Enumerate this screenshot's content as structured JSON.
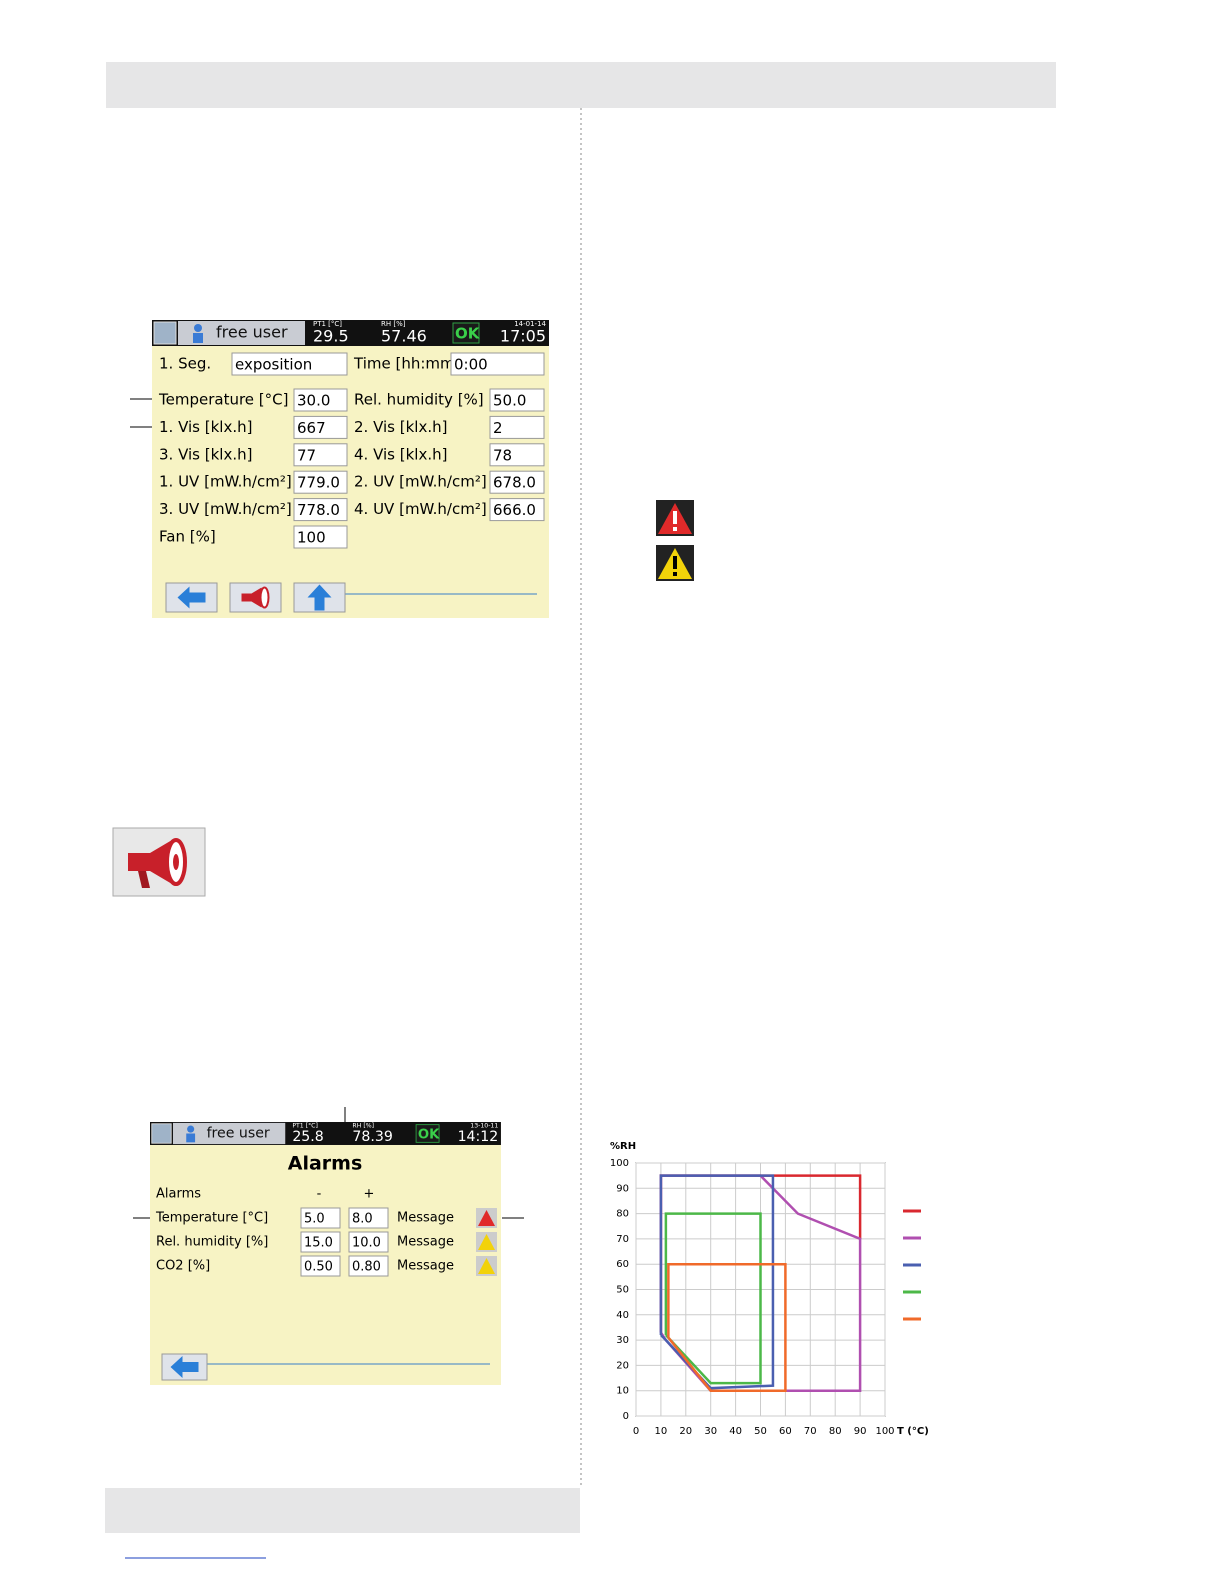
{
  "screen1": {
    "user": "free user",
    "status": [
      {
        "label": "PT1 [°C]",
        "value": "29.5"
      },
      {
        "label": "RH [%]",
        "value": "57.46"
      }
    ],
    "ok": "OK",
    "date": "14-01-14",
    "time": "17:05",
    "segment": {
      "label": "1. Seg.",
      "value": "exposition",
      "time_label": "Time [hh:mm]",
      "time_value": "0:00"
    },
    "rows": [
      [
        "Temperature [°C]",
        "30.0",
        "Rel. humidity [%]",
        "50.0"
      ],
      [
        "1. Vis [klx.h]",
        "667",
        "2. Vis [klx.h]",
        "2"
      ],
      [
        "3. Vis [klx.h]",
        "77",
        "4. Vis [klx.h]",
        "78"
      ],
      [
        "1. UV [mW.h/cm²]",
        "779.0",
        "2. UV [mW.h/cm²]",
        "678.0"
      ],
      [
        "3. UV [mW.h/cm²]",
        "778.0",
        "4. UV [mW.h/cm²]",
        "666.0"
      ],
      [
        "Fan [%]",
        "100"
      ]
    ]
  },
  "screen2": {
    "user": "free user",
    "status": [
      {
        "label": "PT1 [°C]",
        "value": "25.8"
      },
      {
        "label": "RH [%]",
        "value": "78.39"
      }
    ],
    "ok": "OK",
    "date": "13-10-11",
    "time": "14:12",
    "title": "Alarms",
    "header": [
      "Alarms",
      "-",
      "+"
    ],
    "rows": [
      [
        "Temperature [°C]",
        "5.0",
        "8.0",
        "Message"
      ],
      [
        "Rel. humidity [%]",
        "15.0",
        "10.0",
        "Message"
      ],
      [
        "CO2 [%]",
        "0.50",
        "0.80",
        "Message"
      ]
    ]
  },
  "chart_data": {
    "type": "line",
    "xlabel": "T (°C)",
    "ylabel": "%RH",
    "xlim": [
      0,
      100
    ],
    "ylim": [
      0,
      100
    ],
    "xticks": [
      0,
      10,
      20,
      30,
      40,
      50,
      60,
      70,
      80,
      90,
      100
    ],
    "yticks": [
      0,
      10,
      20,
      30,
      40,
      50,
      60,
      70,
      80,
      90,
      100
    ],
    "grid": true,
    "series": [
      {
        "color": "#d9282f",
        "x": [
          10,
          10,
          90,
          90
        ],
        "values": [
          33,
          95,
          95,
          70
        ]
      },
      {
        "color": "#b04fb0",
        "x": [
          10,
          10,
          50,
          65,
          90,
          90,
          30,
          12,
          10
        ],
        "values": [
          33,
          95,
          95,
          80,
          70,
          10,
          10,
          30,
          33
        ]
      },
      {
        "color": "#4a5fb0",
        "x": [
          10,
          10,
          55,
          55,
          30,
          12,
          10
        ],
        "values": [
          32,
          95,
          95,
          12,
          11,
          30,
          32
        ]
      },
      {
        "color": "#4cb848",
        "x": [
          12,
          12,
          50,
          50,
          30,
          12
        ],
        "values": [
          32,
          80,
          80,
          13,
          13,
          32
        ]
      },
      {
        "color": "#f06a2a",
        "x": [
          13,
          13,
          60,
          60,
          30,
          13
        ],
        "values": [
          31,
          60,
          60,
          10,
          10,
          31
        ]
      }
    ]
  }
}
